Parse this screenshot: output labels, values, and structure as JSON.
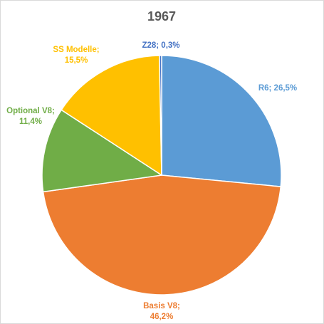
{
  "chart_data": {
    "type": "pie",
    "title": "1967",
    "slices": [
      {
        "category": "R6",
        "value": 26.5,
        "label_line1": "R6; 26,5%",
        "label_line2": "",
        "color": "#5b9bd5"
      },
      {
        "category": "Basis V8",
        "value": 46.2,
        "label_line1": "Basis V8;",
        "label_line2": "46,2%",
        "color": "#ed7d31"
      },
      {
        "category": "Optional V8",
        "value": 11.4,
        "label_line1": "Optional V8;",
        "label_line2": "11,4%",
        "color": "#70ad47"
      },
      {
        "category": "SS Modelle",
        "value": 15.5,
        "label_line1": "SS Modelle;",
        "label_line2": "15,5%",
        "color": "#ffc000"
      },
      {
        "category": "Z28",
        "value": 0.3,
        "label_line1": "Z28; 0,3%",
        "label_line2": "",
        "color": "#4472c4"
      }
    ],
    "legend": "none",
    "start_angle": "12 o'clock, clockwise"
  }
}
